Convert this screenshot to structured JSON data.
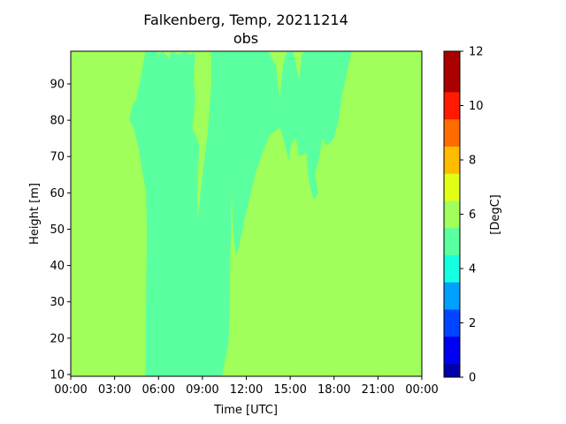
{
  "chart_data": {
    "type": "heatmap",
    "title": "Falkenberg, Temp, 20211214",
    "subtitle": "obs",
    "xlabel": "Time [UTC]",
    "ylabel": "Height [m]",
    "xlim": [
      0,
      24
    ],
    "ylim": [
      9.5,
      99
    ],
    "x_ticks": [
      {
        "value": 0,
        "label": "00:00"
      },
      {
        "value": 3,
        "label": "03:00"
      },
      {
        "value": 6,
        "label": "06:00"
      },
      {
        "value": 9,
        "label": "09:00"
      },
      {
        "value": 12,
        "label": "12:00"
      },
      {
        "value": 15,
        "label": "15:00"
      },
      {
        "value": 18,
        "label": "18:00"
      },
      {
        "value": 21,
        "label": "21:00"
      },
      {
        "value": 24,
        "label": "00:00"
      }
    ],
    "y_ticks": [
      10,
      20,
      30,
      40,
      50,
      60,
      70,
      80,
      90
    ],
    "levels": [
      {
        "value": 6,
        "color": "#a0ff5a"
      },
      {
        "value": 5,
        "color": "#5affa0"
      }
    ],
    "regions": [
      {
        "name": "5-6 DegC region",
        "level": 5,
        "points": [
          [
            5.1,
            9.5
          ],
          [
            5.15,
            30
          ],
          [
            5.2,
            50
          ],
          [
            5.15,
            60
          ],
          [
            4.85,
            67
          ],
          [
            4.65,
            72
          ],
          [
            4.3,
            78
          ],
          [
            4.0,
            80
          ],
          [
            4.2,
            84
          ],
          [
            4.5,
            86
          ],
          [
            4.8,
            92
          ],
          [
            5.1,
            99
          ],
          [
            5.9,
            99
          ],
          [
            6.0,
            98
          ],
          [
            6.3,
            99
          ],
          [
            6.7,
            97
          ],
          [
            6.9,
            99
          ],
          [
            7.4,
            98
          ],
          [
            7.8,
            99
          ],
          [
            8.2,
            98
          ],
          [
            8.5,
            99
          ],
          [
            8.4,
            92
          ],
          [
            8.5,
            85
          ],
          [
            8.3,
            78
          ],
          [
            8.8,
            73
          ],
          [
            8.7,
            66
          ],
          [
            8.65,
            59
          ],
          [
            8.7,
            53
          ],
          [
            8.9,
            61
          ],
          [
            9.1,
            68
          ],
          [
            9.4,
            78
          ],
          [
            9.6,
            90
          ],
          [
            9.6,
            99
          ],
          [
            13.5,
            99
          ],
          [
            14.0,
            95
          ],
          [
            14.3,
            86
          ],
          [
            14.5,
            95
          ],
          [
            14.8,
            99
          ],
          [
            15.2,
            99
          ],
          [
            15.6,
            91
          ],
          [
            15.8,
            98
          ],
          [
            16.0,
            99
          ],
          [
            17.5,
            99
          ],
          [
            18.6,
            99
          ],
          [
            19.2,
            99
          ],
          [
            18.6,
            88
          ],
          [
            18.3,
            80
          ],
          [
            18.0,
            75
          ],
          [
            17.5,
            73
          ],
          [
            17.2,
            75
          ],
          [
            17.0,
            70
          ],
          [
            16.7,
            65
          ],
          [
            16.9,
            60
          ],
          [
            16.6,
            58
          ],
          [
            16.3,
            63
          ],
          [
            16.1,
            71
          ],
          [
            15.6,
            70
          ],
          [
            15.4,
            75
          ],
          [
            15.1,
            74
          ],
          [
            14.9,
            69
          ],
          [
            14.6,
            74
          ],
          [
            14.3,
            78
          ],
          [
            13.6,
            76
          ],
          [
            13.1,
            71
          ],
          [
            12.6,
            65
          ],
          [
            12.2,
            58
          ],
          [
            11.9,
            53
          ],
          [
            11.5,
            45
          ],
          [
            11.3,
            43
          ],
          [
            11.1,
            49
          ],
          [
            11.0,
            61
          ],
          [
            10.95,
            50
          ],
          [
            10.9,
            40
          ],
          [
            10.85,
            30
          ],
          [
            10.8,
            19
          ],
          [
            10.55,
            14
          ],
          [
            10.4,
            11
          ],
          [
            10.35,
            9.5
          ]
        ]
      }
    ],
    "colorbar": {
      "label": "[DegC]",
      "min": 0,
      "max": 12,
      "ticks": [
        0,
        2,
        4,
        6,
        8,
        10,
        12
      ],
      "bins": [
        {
          "from": 0,
          "to": 0.5,
          "color": "#0000aa"
        },
        {
          "from": 0.5,
          "to": 1.5,
          "color": "#0000f0"
        },
        {
          "from": 1.5,
          "to": 2.5,
          "color": "#0044ff"
        },
        {
          "from": 2.5,
          "to": 3.5,
          "color": "#00a0ff"
        },
        {
          "from": 3.5,
          "to": 4.5,
          "color": "#16ffe1"
        },
        {
          "from": 4.5,
          "to": 5.5,
          "color": "#5affa0"
        },
        {
          "from": 5.5,
          "to": 6.5,
          "color": "#a0ff5a"
        },
        {
          "from": 6.5,
          "to": 7.5,
          "color": "#e1ff16"
        },
        {
          "from": 7.5,
          "to": 8.5,
          "color": "#ffbc00"
        },
        {
          "from": 8.5,
          "to": 9.5,
          "color": "#ff6c00"
        },
        {
          "from": 9.5,
          "to": 10.5,
          "color": "#ff1a00"
        },
        {
          "from": 10.5,
          "to": 12,
          "color": "#aa0000"
        }
      ]
    }
  }
}
